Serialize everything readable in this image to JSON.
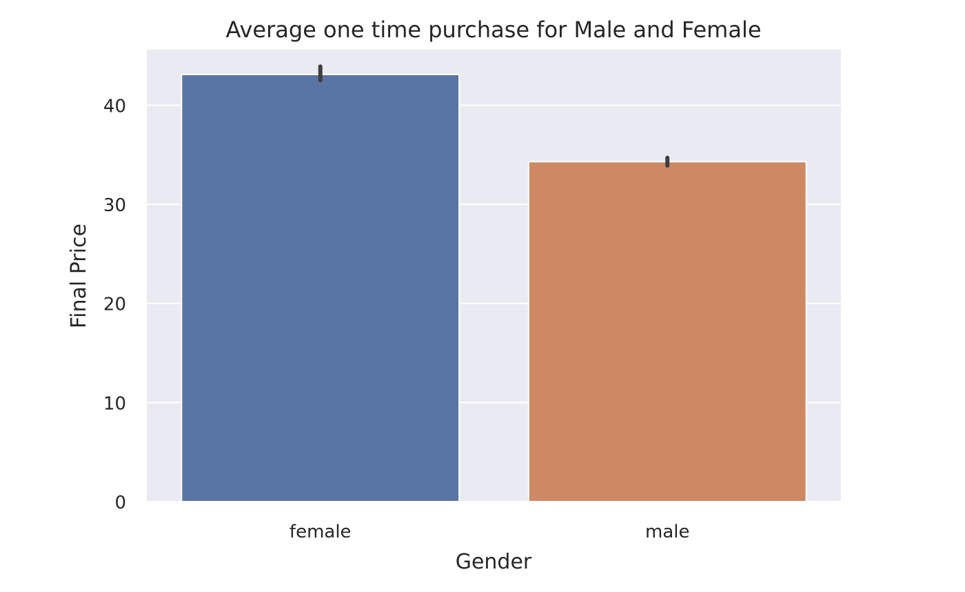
{
  "chart_data": {
    "type": "bar",
    "title": "Average one time purchase for Male and Female",
    "xlabel": "Gender",
    "ylabel": "Final Price",
    "categories": [
      "female",
      "male"
    ],
    "values": [
      43.1,
      34.3
    ],
    "error_bars": [
      {
        "low": 42.5,
        "high": 43.9
      },
      {
        "low": 33.9,
        "high": 34.7
      }
    ],
    "ylim": [
      0,
      45.6
    ],
    "yticks": [
      "0",
      "10",
      "20",
      "30",
      "40"
    ],
    "grid": true,
    "colors": {
      "plot_background": "#eaeaf2",
      "grid": "#ffffff",
      "bars": [
        "#5875a4",
        "#cc8963"
      ],
      "error_bar": "#3f3f3f",
      "text": "#262626"
    }
  }
}
